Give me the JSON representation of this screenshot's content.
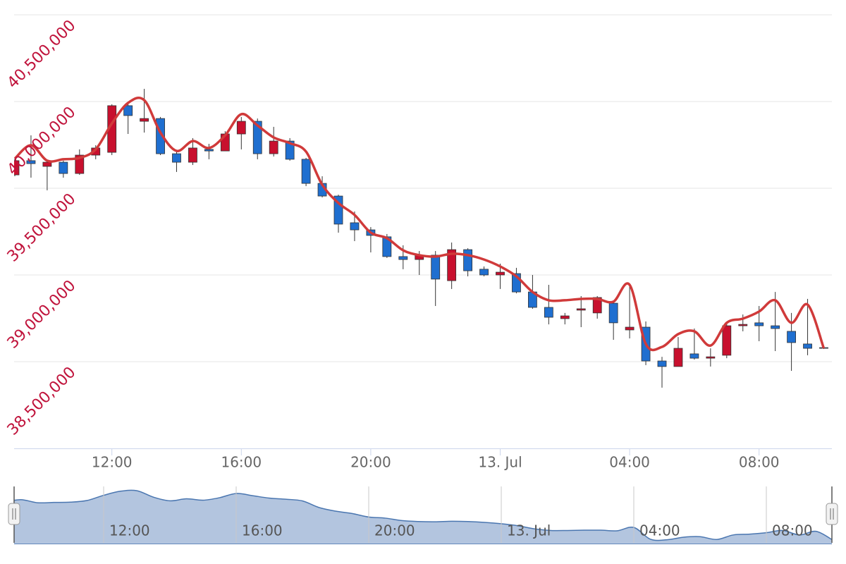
{
  "chart_data": {
    "type": "candlestick",
    "categories": [
      null,
      null,
      null,
      null,
      null,
      null,
      "12:00",
      null,
      null,
      null,
      null,
      null,
      null,
      null,
      "16:00",
      null,
      null,
      null,
      null,
      null,
      null,
      null,
      "20:00",
      null,
      null,
      null,
      null,
      null,
      null,
      null,
      "13. Jul",
      null,
      null,
      null,
      null,
      null,
      null,
      null,
      "04:00",
      null,
      null,
      null,
      null,
      null,
      null,
      null,
      "08:00",
      null,
      null,
      null,
      null
    ],
    "ylim": [
      38000000,
      40500000
    ],
    "yticks": [
      {
        "value": 38500000,
        "label": "38,500,000"
      },
      {
        "value": 39000000,
        "label": "39,000,000"
      },
      {
        "value": 39500000,
        "label": "39,500,000"
      },
      {
        "value": 40000000,
        "label": "40,000,000"
      },
      {
        "value": 40500000,
        "label": "40,500,000"
      }
    ],
    "grid": true,
    "series": [
      {
        "type": "candlestick",
        "up_color": "#c8102e",
        "down_color": "#1f6fd0",
        "open": [
          39577000,
          39659000,
          39626000,
          39650000,
          39585000,
          39691000,
          39707000,
          39976000,
          39886000,
          39902000,
          39699000,
          39650000,
          39724000,
          39715000,
          39813000,
          39886000,
          39699000,
          39772000,
          39667000,
          39528000,
          39455000,
          39301000,
          39260000,
          39220000,
          39106000,
          39089000,
          39114000,
          38967000,
          39146000,
          39033000,
          39000000,
          39008000,
          38902000,
          38813000,
          38748000,
          38797000,
          38781000,
          38837000,
          38683000,
          38699000,
          38504000,
          38472000,
          38545000,
          38520000,
          38537000,
          38707000,
          38724000,
          38707000,
          38675000,
          38602000,
          38581000
        ],
        "high": [
          39671000,
          39805000,
          39659000,
          39659000,
          39724000,
          39748000,
          39984000,
          39992000,
          40073000,
          39911000,
          39715000,
          39789000,
          39756000,
          39829000,
          39911000,
          39902000,
          39854000,
          39789000,
          39675000,
          39569000,
          39463000,
          39366000,
          39276000,
          39236000,
          39171000,
          39138000,
          39138000,
          39187000,
          39154000,
          39049000,
          39065000,
          39041000,
          39000000,
          38943000,
          38781000,
          38878000,
          38878000,
          38846000,
          38943000,
          38732000,
          38528000,
          38642000,
          38691000,
          38577000,
          38724000,
          38772000,
          38821000,
          38902000,
          38781000,
          38862000,
          38581000
        ],
        "low": [
          39569000,
          39561000,
          39488000,
          39561000,
          39577000,
          39667000,
          39691000,
          39813000,
          39821000,
          39691000,
          39594000,
          39634000,
          39667000,
          39715000,
          39724000,
          39667000,
          39683000,
          39659000,
          39512000,
          39447000,
          39244000,
          39195000,
          39130000,
          39098000,
          39033000,
          39000000,
          38821000,
          38919000,
          38992000,
          38992000,
          38919000,
          38894000,
          38805000,
          38715000,
          38715000,
          38699000,
          38748000,
          38626000,
          38634000,
          38480000,
          38350000,
          38472000,
          38512000,
          38472000,
          38520000,
          38675000,
          38618000,
          38561000,
          38447000,
          38537000,
          38573000
        ],
        "close": [
          39659000,
          39642000,
          39650000,
          39585000,
          39691000,
          39732000,
          39976000,
          39919000,
          39902000,
          39699000,
          39650000,
          39732000,
          39715000,
          39813000,
          39886000,
          39699000,
          39772000,
          39667000,
          39528000,
          39455000,
          39293000,
          39260000,
          39228000,
          39106000,
          39089000,
          39114000,
          38976000,
          39146000,
          39024000,
          39000000,
          39016000,
          38902000,
          38813000,
          38756000,
          38764000,
          38805000,
          38870000,
          38724000,
          38699000,
          38504000,
          38472000,
          38577000,
          38520000,
          38528000,
          38707000,
          38715000,
          38707000,
          38691000,
          38610000,
          38577000,
          38577000
        ]
      },
      {
        "type": "spline",
        "color": "#d03a3a",
        "values": [
          39671000,
          39748000,
          39659000,
          39667000,
          39675000,
          39724000,
          39874000,
          39992000,
          40008000,
          39821000,
          39715000,
          39772000,
          39732000,
          39805000,
          39927000,
          39862000,
          39793000,
          39760000,
          39711000,
          39520000,
          39415000,
          39346000,
          39244000,
          39212000,
          39142000,
          39114000,
          39106000,
          39122000,
          39114000,
          39089000,
          39049000,
          38992000,
          38902000,
          38854000,
          38854000,
          38862000,
          38862000,
          38846000,
          38943000,
          38602000,
          38585000,
          38659000,
          38675000,
          38593000,
          38724000,
          38748000,
          38789000,
          38854000,
          38724000,
          38829000,
          38577000
        ]
      }
    ]
  }
}
